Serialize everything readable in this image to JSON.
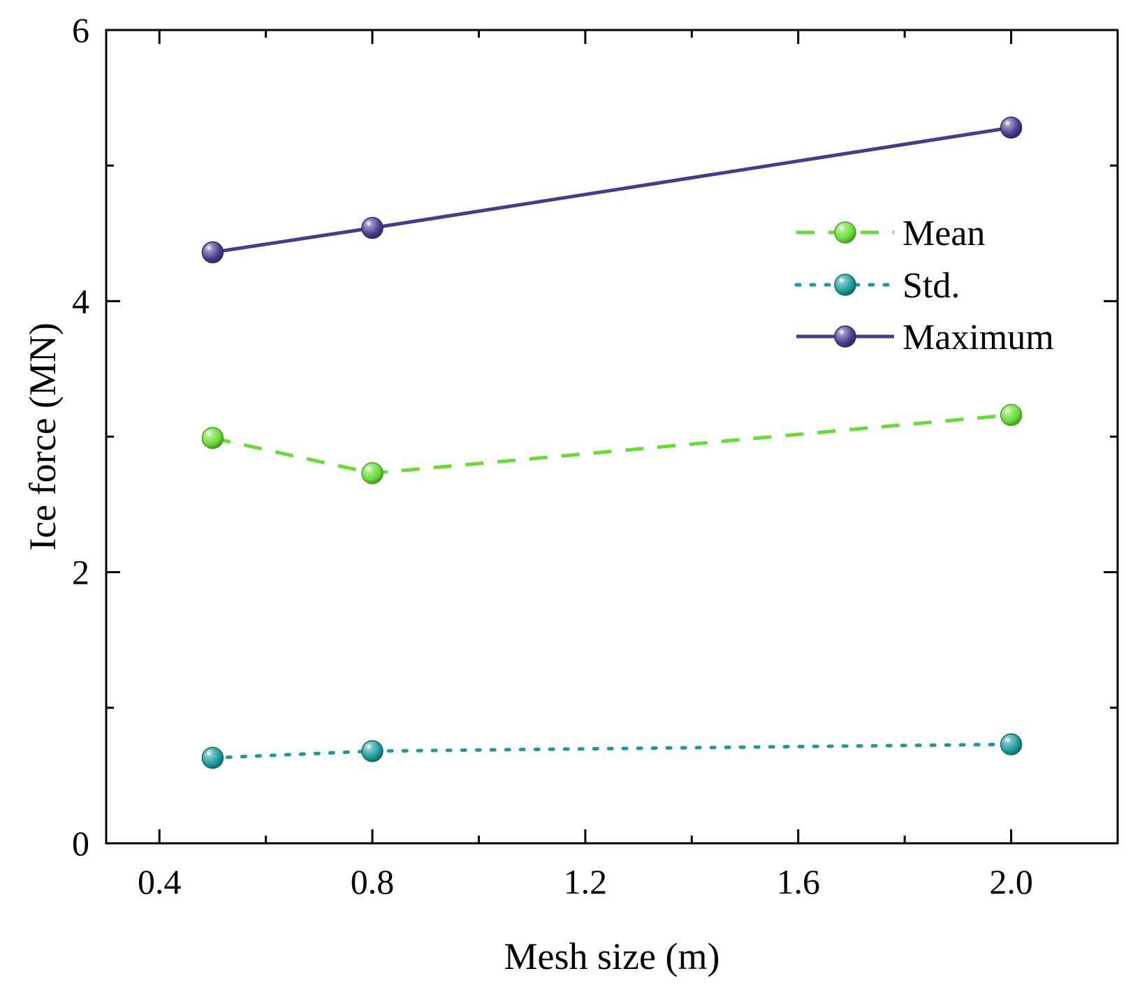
{
  "chart_data": {
    "type": "line",
    "title": "",
    "xlabel": "Mesh size (m)",
    "ylabel": "Ice force (MN)",
    "xlim": [
      0.3,
      2.2
    ],
    "ylim": [
      0,
      6
    ],
    "x_ticks": [
      0.4,
      0.8,
      1.2,
      1.6,
      2.0
    ],
    "x_tick_labels": [
      "0.4",
      "0.8",
      "1.2",
      "1.6",
      "2.0"
    ],
    "x_minor_ticks": [
      0.6,
      1.0,
      1.4,
      1.8
    ],
    "y_ticks": [
      0,
      2,
      4,
      6
    ],
    "y_tick_labels": [
      "0",
      "2",
      "4",
      "6"
    ],
    "y_minor_ticks": [
      1,
      3,
      5
    ],
    "grid": false,
    "legend_position": "top-right",
    "x": [
      0.5,
      0.8,
      2.0
    ],
    "series": [
      {
        "name": "Mean",
        "values": [
          2.99,
          2.73,
          3.16
        ],
        "color": "#66dd33",
        "line_style": "dashed"
      },
      {
        "name": "Std.",
        "values": [
          0.63,
          0.68,
          0.73
        ],
        "color": "#1a9a99",
        "line_style": "dotted"
      },
      {
        "name": "Maximum",
        "values": [
          4.36,
          4.54,
          5.28
        ],
        "color": "#4a3a8e",
        "line_style": "solid"
      }
    ]
  }
}
